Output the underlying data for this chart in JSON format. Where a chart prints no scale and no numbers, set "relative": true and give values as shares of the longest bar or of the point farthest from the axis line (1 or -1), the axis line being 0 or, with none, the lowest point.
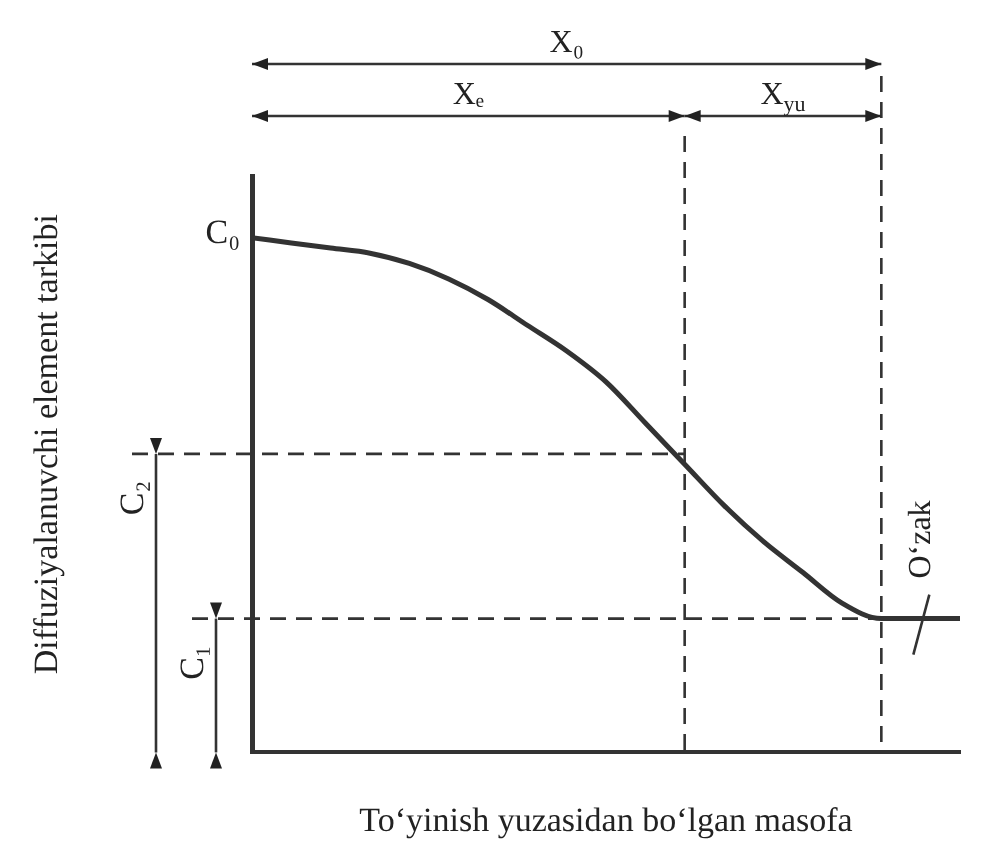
{
  "chart_data": {
    "type": "line",
    "relative": true,
    "xlabel": "To‘yinish yuzasidan bo‘lgan masofa",
    "ylabel": "Diffuziyalanuvchi element tarkibi",
    "categories": [
      null,
      null,
      null,
      null,
      null,
      null,
      null,
      null,
      null,
      null,
      null,
      null,
      null,
      null,
      null,
      null,
      null,
      null,
      null
    ],
    "series": [
      {
        "color": "#333333",
        "values": [
          1,
          0.99,
          0.98,
          0.97,
          0.95,
          0.92,
          0.88,
          0.83,
          0.78,
          0.72,
          0.64,
          0.56,
          0.48,
          0.41,
          0.35,
          0.29,
          0.26,
          0.26,
          0.26
        ]
      }
    ],
    "ref_lines": [
      {
        "axis": "y",
        "value": 0.58,
        "label": "C₂",
        "line_style": "dashed"
      },
      {
        "axis": "y",
        "value": 0.26,
        "label": "C₁",
        "line_style": "dashed"
      }
    ],
    "annotations": [
      "C₀",
      "X₀",
      "Xₑ",
      "X$_{yu}$",
      "O‘zak"
    ],
    "marker": "none",
    "line_style": "solid",
    "grid": false,
    "legend": false
  }
}
